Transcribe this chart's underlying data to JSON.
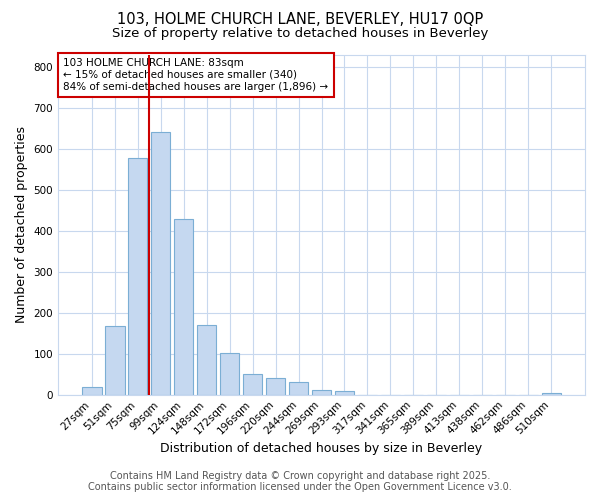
{
  "title1": "103, HOLME CHURCH LANE, BEVERLEY, HU17 0QP",
  "title2": "Size of property relative to detached houses in Beverley",
  "xlabel": "Distribution of detached houses by size in Beverley",
  "ylabel": "Number of detached properties",
  "categories": [
    "27sqm",
    "51sqm",
    "75sqm",
    "99sqm",
    "124sqm",
    "148sqm",
    "172sqm",
    "196sqm",
    "220sqm",
    "244sqm",
    "269sqm",
    "293sqm",
    "317sqm",
    "341sqm",
    "365sqm",
    "389sqm",
    "413sqm",
    "438sqm",
    "462sqm",
    "486sqm",
    "510sqm"
  ],
  "values": [
    20,
    168,
    578,
    643,
    430,
    170,
    101,
    51,
    40,
    32,
    12,
    10,
    0,
    0,
    0,
    0,
    0,
    0,
    0,
    0,
    5
  ],
  "bar_color": "#c5d8f0",
  "bar_edge_color": "#7baed4",
  "red_line_label": "103 HOLME CHURCH LANE: 83sqm",
  "annotation_line2": "← 15% of detached houses are smaller (340)",
  "annotation_line3": "84% of semi-detached houses are larger (1,896) →",
  "annotation_box_color": "#ffffff",
  "annotation_box_edge": "#cc0000",
  "red_line_color": "#cc0000",
  "footer1": "Contains HM Land Registry data © Crown copyright and database right 2025.",
  "footer2": "Contains public sector information licensed under the Open Government Licence v3.0.",
  "ylim": [
    0,
    830
  ],
  "yticks": [
    0,
    100,
    200,
    300,
    400,
    500,
    600,
    700,
    800
  ],
  "grid_color": "#c8d8ee",
  "bg_color": "#ffffff",
  "title_fontsize": 10.5,
  "subtitle_fontsize": 9.5,
  "axis_label_fontsize": 9,
  "tick_fontsize": 7.5,
  "footer_fontsize": 7
}
